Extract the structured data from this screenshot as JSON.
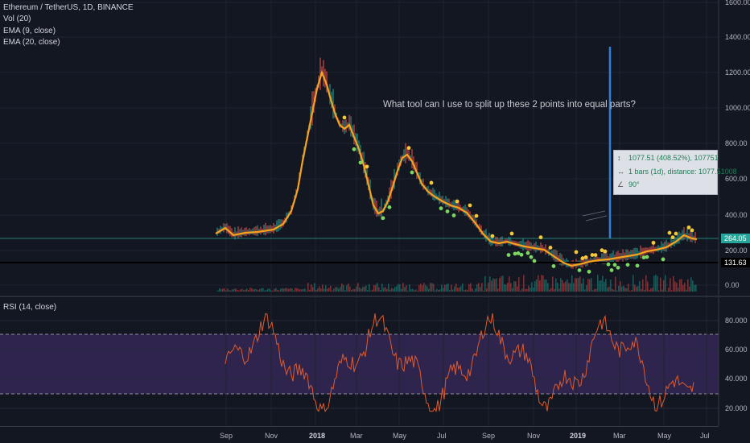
{
  "legend": {
    "symbol": "Ethereum / TetherUS, 1D, BINANCE",
    "volume": "Vol (20)",
    "ema9": "EMA (9, close)",
    "ema20": "EMA (20, close)"
  },
  "rsi_legend": "RSI (14, close)",
  "annotation": "What tool can I use to split up these 2 points into equal parts?",
  "measure_tool": {
    "price_line": "1077.51 (408.52%), 107751",
    "bars_line": "1 bars (1d), distance: 1077.51008",
    "angle_line": "90°"
  },
  "price_axis": [
    "1600.00",
    "1400.00",
    "1200.00",
    "1000.00",
    "800.00",
    "600.00",
    "400.00",
    "200.00",
    "0.00"
  ],
  "price_tags": {
    "last_price": "264.05",
    "line_price": "131.63"
  },
  "rsi_axis": [
    "80.000",
    "60.000",
    "40.000",
    "20.000"
  ],
  "time_axis": [
    "Sep",
    "Nov",
    "2018",
    "Mar",
    "May",
    "Jul",
    "Sep",
    "Nov",
    "2019",
    "Mar",
    "May",
    "Jul"
  ],
  "colors": {
    "background": "#131722",
    "ema9": "#f7a21b",
    "ema20": "#f7a21b",
    "dot_up": "#7cd860",
    "dot_down": "#f5c83a",
    "rsi_line": "#e05a2b",
    "rsi_band": "#3a2a5c",
    "measure_line": "#2f7fd8",
    "last_price_tag": "#26a69a"
  }
}
